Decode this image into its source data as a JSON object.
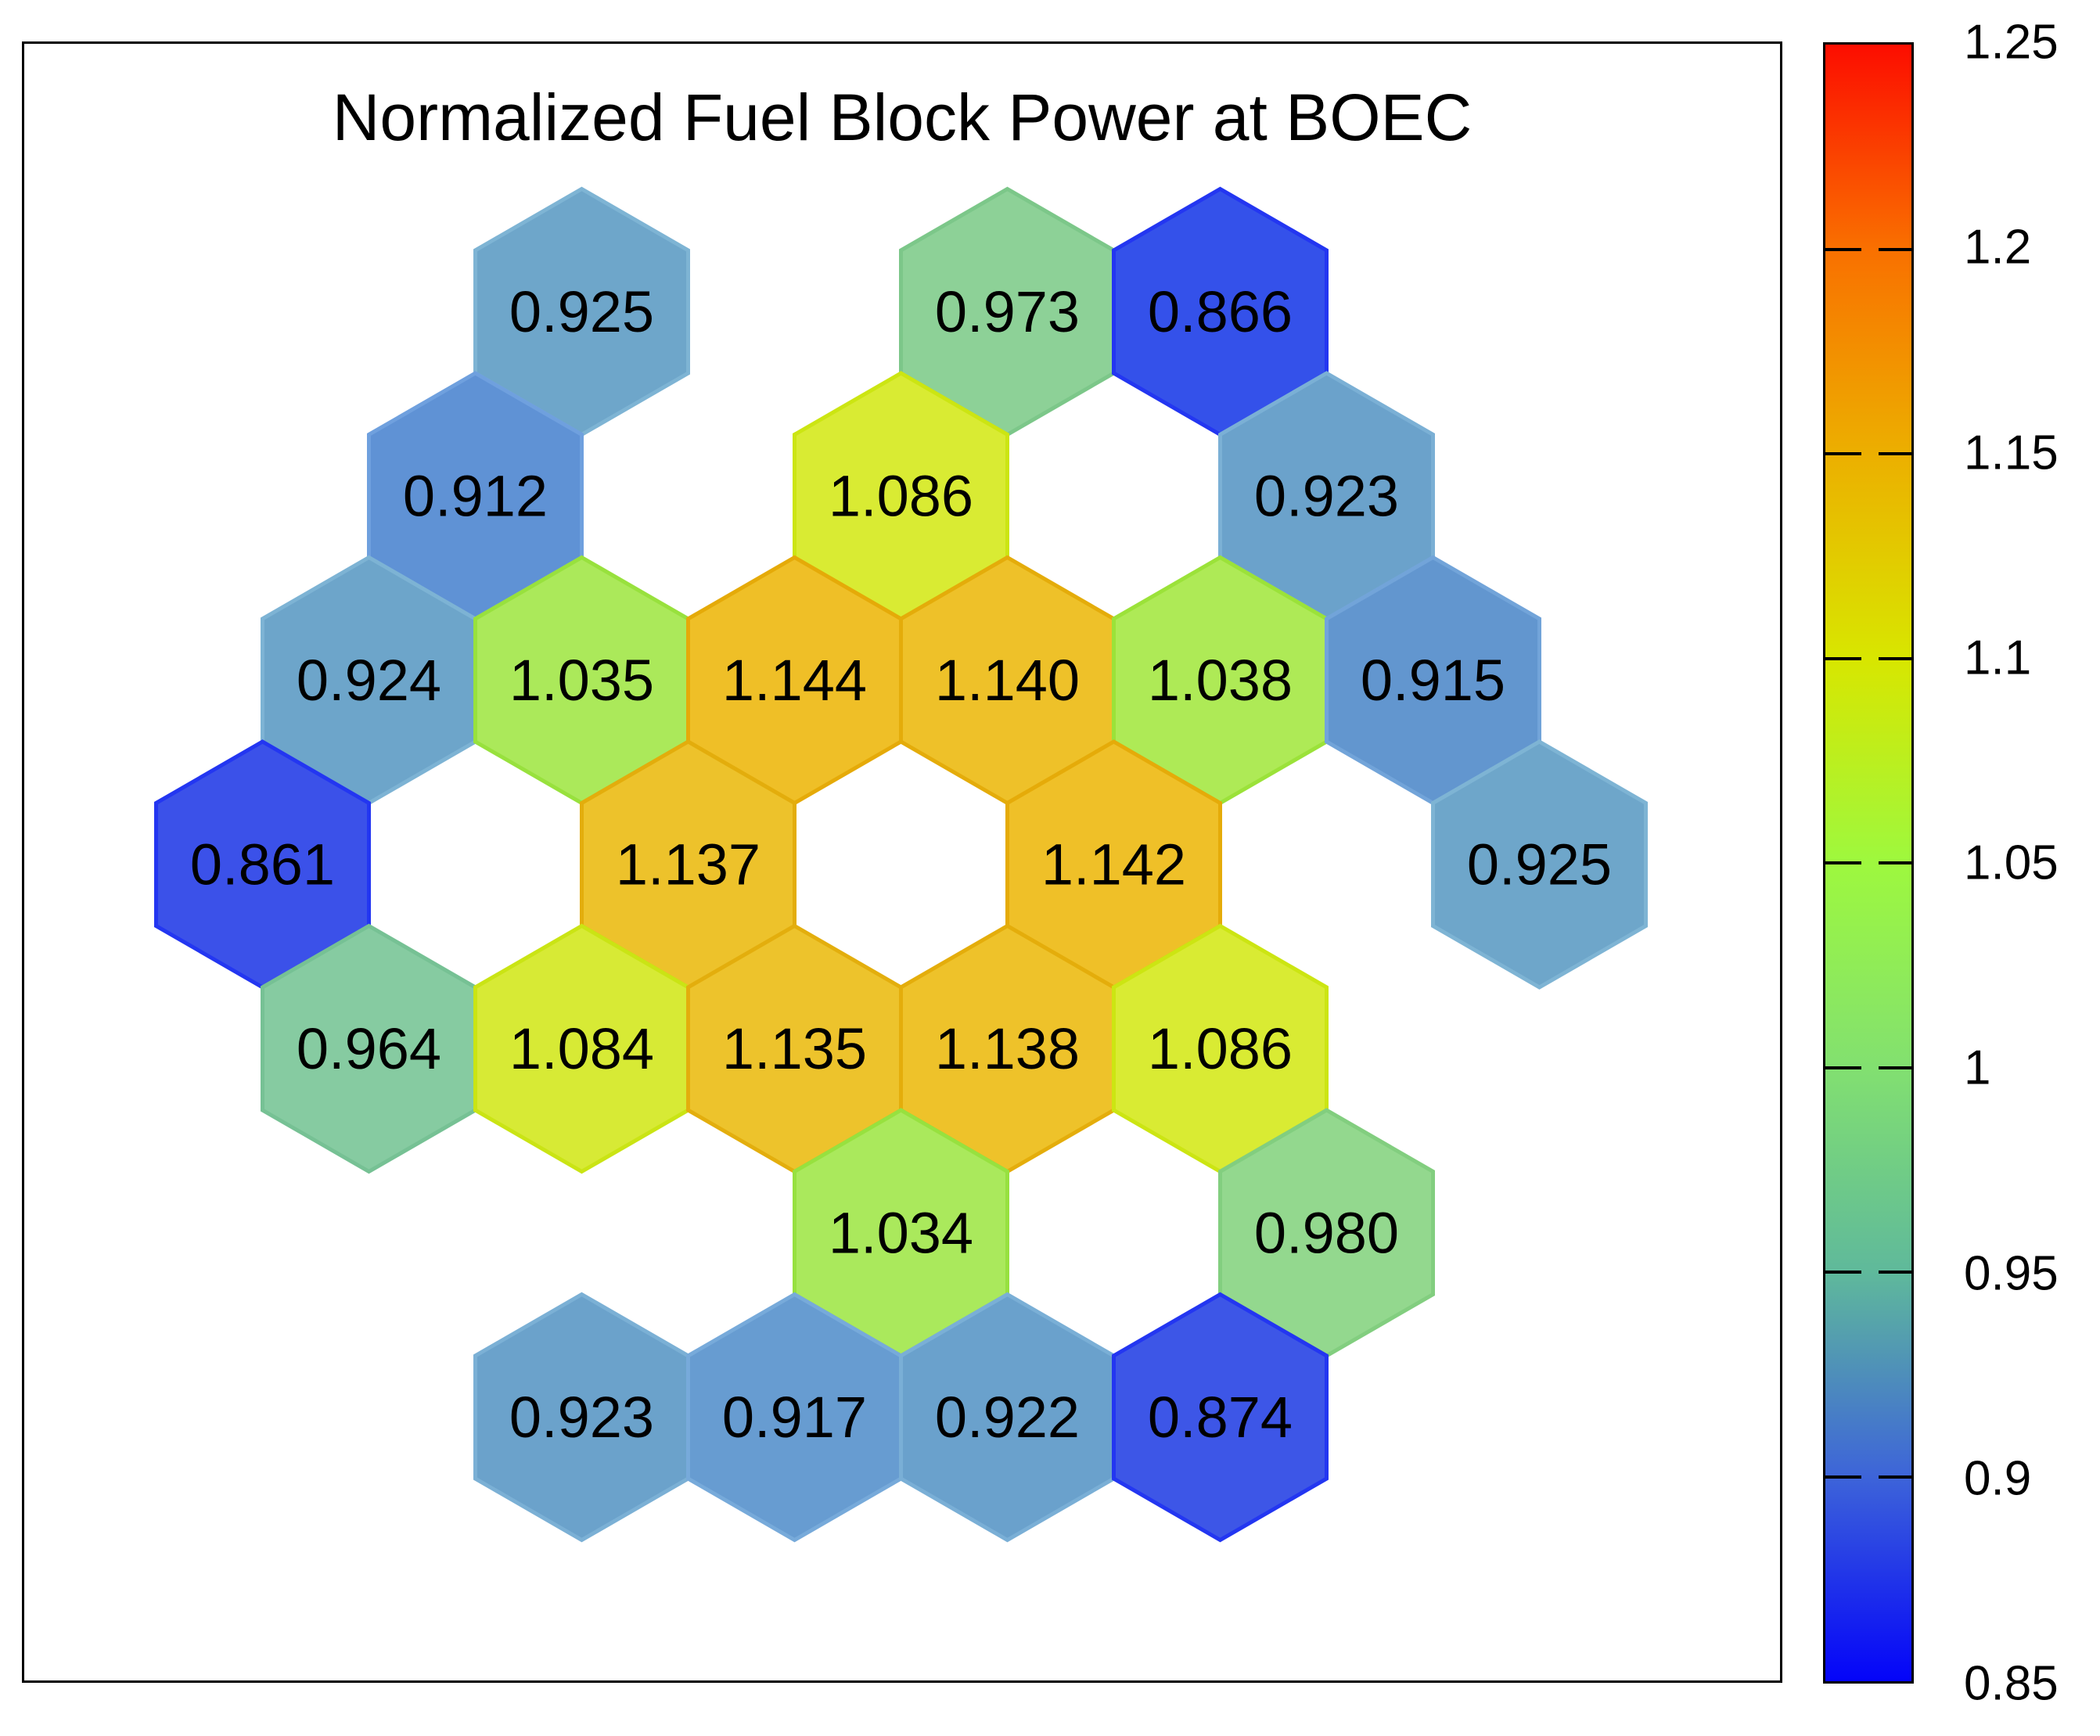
{
  "title": "Normalized Fuel Block Power at BOEC",
  "chart_data": {
    "type": "heatmap",
    "subtype": "hexagonal-core-map",
    "title": "Normalized Fuel Block Power at BOEC",
    "legend_position": "right-colorbar",
    "grid": "hexagonal pointy-top, empty white positions between rings",
    "colorbar": {
      "min": 0.85,
      "max": 1.25,
      "tick_labels": [
        "1.25",
        "1.2",
        "1.15",
        "1.1",
        "1.05",
        "1",
        "0.95",
        "0.9",
        "0.85"
      ],
      "gradient_top_to_bottom": [
        "#FC0D00",
        "#F97000",
        "#ECAF00",
        "#D8E600",
        "#9EF83E",
        "#82E070",
        "#5FB99B",
        "#3D64D9",
        "#0404F9"
      ]
    },
    "cells": [
      {
        "row": 0,
        "col": 0,
        "value": "0.925",
        "fill": "#6EA6CA",
        "stroke": "#7EB4D4"
      },
      {
        "row": 0,
        "col": 4,
        "value": "0.973",
        "fill": "#8DD197",
        "stroke": "#7CC789"
      },
      {
        "row": 0,
        "col": 6,
        "value": "0.866",
        "fill": "#3451EA",
        "stroke": "#2336F1"
      },
      {
        "row": 1,
        "col": -1,
        "value": "0.912",
        "fill": "#5F92D5",
        "stroke": "#6FA0DE"
      },
      {
        "row": 1,
        "col": 3,
        "value": "1.086",
        "fill": "#D9EB33",
        "stroke": "#CCE512"
      },
      {
        "row": 1,
        "col": 7,
        "value": "0.923",
        "fill": "#6BA2CB",
        "stroke": "#7BB0D5"
      },
      {
        "row": 2,
        "col": -2,
        "value": "0.924",
        "fill": "#6DA5CA",
        "stroke": "#7DB3D4"
      },
      {
        "row": 2,
        "col": 0,
        "value": "1.035",
        "fill": "#ABE95A",
        "stroke": "#98E13D"
      },
      {
        "row": 2,
        "col": 2,
        "value": "1.144",
        "fill": "#EFBF27",
        "stroke": "#E5AA08"
      },
      {
        "row": 2,
        "col": 4,
        "value": "1.140",
        "fill": "#EEC129",
        "stroke": "#E4AC0A"
      },
      {
        "row": 2,
        "col": 6,
        "value": "1.038",
        "fill": "#AEEA56",
        "stroke": "#9BE239"
      },
      {
        "row": 2,
        "col": 8,
        "value": "0.915",
        "fill": "#6296CF",
        "stroke": "#72A4D9"
      },
      {
        "row": 3,
        "col": -3,
        "value": "0.861",
        "fill": "#3B51E9",
        "stroke": "#2336F1"
      },
      {
        "row": 3,
        "col": 1,
        "value": "1.137",
        "fill": "#EDC22B",
        "stroke": "#E3AD0C"
      },
      {
        "row": 3,
        "col": 5,
        "value": "1.142",
        "fill": "#EFC028",
        "stroke": "#E5AB09"
      },
      {
        "row": 3,
        "col": 9,
        "value": "0.925",
        "fill": "#6EA6CA",
        "stroke": "#7EB4D4"
      },
      {
        "row": 4,
        "col": -2,
        "value": "0.964",
        "fill": "#86CBA1",
        "stroke": "#76C194"
      },
      {
        "row": 4,
        "col": 0,
        "value": "1.084",
        "fill": "#D7EA35",
        "stroke": "#CAE414"
      },
      {
        "row": 4,
        "col": 2,
        "value": "1.135",
        "fill": "#EDC32C",
        "stroke": "#E3AE0D"
      },
      {
        "row": 4,
        "col": 4,
        "value": "1.138",
        "fill": "#EEC22A",
        "stroke": "#E4AD0B"
      },
      {
        "row": 4,
        "col": 6,
        "value": "1.086",
        "fill": "#D9EB33",
        "stroke": "#CCE512"
      },
      {
        "row": 5,
        "col": 3,
        "value": "1.034",
        "fill": "#AAE95C",
        "stroke": "#97E13F"
      },
      {
        "row": 5,
        "col": 7,
        "value": "0.980",
        "fill": "#93D88E",
        "stroke": "#82CE7F"
      },
      {
        "row": 6,
        "col": 0,
        "value": "0.923",
        "fill": "#6BA2CB",
        "stroke": "#7BB0D5"
      },
      {
        "row": 6,
        "col": 2,
        "value": "0.917",
        "fill": "#679CD1",
        "stroke": "#77AADA"
      },
      {
        "row": 6,
        "col": 4,
        "value": "0.922",
        "fill": "#6AA1CC",
        "stroke": "#7AAFD6"
      },
      {
        "row": 6,
        "col": 6,
        "value": "0.874",
        "fill": "#3D56E7",
        "stroke": "#2336F1"
      }
    ]
  }
}
